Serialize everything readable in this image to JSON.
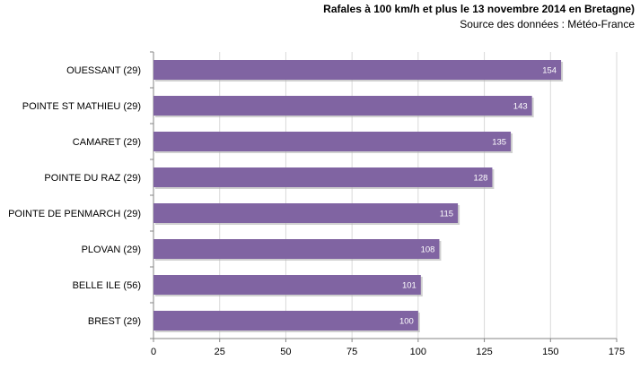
{
  "chart_data": {
    "type": "bar",
    "orientation": "horizontal",
    "title": "Rafales  à 100 km/h et plus le 13 novembre 2014 en Bretagne)",
    "subtitle": "Source des données : Météo-France",
    "categories": [
      "OUESSANT (29)",
      "POINTE ST MATHIEU (29)",
      "CAMARET (29)",
      "POINTE DU RAZ (29)",
      "POINTE DE PENMARCH (29)",
      "PLOVAN (29)",
      "BELLE ILE (56)",
      "BREST (29)"
    ],
    "values": [
      154,
      143,
      135,
      128,
      115,
      108,
      101,
      100
    ],
    "value_labels": [
      "154",
      "143",
      "135",
      "128",
      "115",
      "108",
      "101",
      "100"
    ],
    "xlim": [
      0,
      175
    ],
    "xticks": [
      "0",
      "25",
      "50",
      "75",
      "100",
      "125",
      "150",
      "175"
    ],
    "xlabel": "",
    "ylabel": "",
    "grid": "vertical",
    "bar_color": "#8064a2",
    "bar_shadow_color": "#b0b0b0",
    "grid_color": "#d9d9d9"
  }
}
